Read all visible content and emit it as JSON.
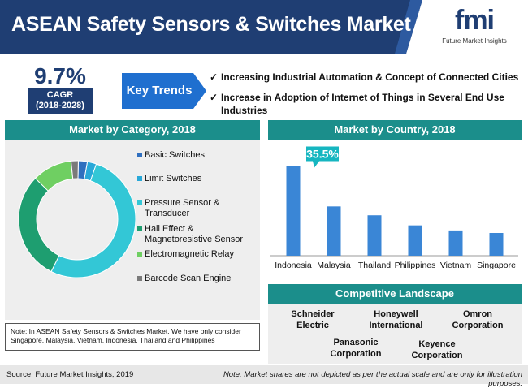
{
  "header": {
    "title": "ASEAN Safety Sensors & Switches Market"
  },
  "logo": {
    "letters": "fmi",
    "tagline": "Future Market Insights"
  },
  "cagr": {
    "value": "9.7%",
    "label": "CAGR",
    "period": "(2018-2028)"
  },
  "key_trends": {
    "label": "Key Trends",
    "items": [
      "Increasing Industrial Automation & Concept of Connected Cities",
      "Increase in Adoption of Internet of Things in Several End Use Industries"
    ]
  },
  "category": {
    "title": "Market by Category, 2018",
    "legend": [
      "Basic Switches",
      "Limit Switches",
      "Pressure Sensor & Transducer",
      "Hall Effect & Magnetoresistive Sensor",
      "Electromagnetic Relay",
      "Barcode Scan Engine"
    ]
  },
  "country": {
    "title": "Market by Country, 2018",
    "callout": "35.5%"
  },
  "competitive": {
    "title": "Competitive Landscape",
    "companies": [
      "Schneider Electric",
      "Honeywell International",
      "Omron Corporation",
      "Panasonic Corporation",
      "Keyence Corporation"
    ]
  },
  "note": "Note: In ASEAN Safety Sensors & Switches Market, We have only consider Singapore, Malaysia, Vietnam, Indonesia, Thailand and Philippines",
  "footer": {
    "source": "Source: Future Market Insights, 2019",
    "disclaimer": "Note: Market shares are not depicted as per the actual scale and are only for illustration purposes."
  },
  "colors": {
    "navy": "#1f3e73",
    "teal": "#1b8e8b",
    "bar": "#3a86d6"
  },
  "chart_data": [
    {
      "type": "pie",
      "title": "Market by Category, 2018",
      "categories": [
        "Basic Switches",
        "Limit Switches",
        "Pressure Sensor & Transducer",
        "Hall Effect & Magnetoresistive Sensor",
        "Electromagnetic Relay",
        "Barcode Scan Engine"
      ],
      "values": [
        2.5,
        2.5,
        52,
        30,
        11,
        2
      ],
      "colors": [
        "#2f6fbf",
        "#29a8d8",
        "#33c7d6",
        "#1e9e70",
        "#6fcf62",
        "#7a7a7a"
      ]
    },
    {
      "type": "bar",
      "title": "Market by Country, 2018",
      "categories": [
        "Indonesia",
        "Malaysia",
        "Thailand",
        "Philippines",
        "Vietnam",
        "Singapore"
      ],
      "values": [
        35.5,
        19.5,
        16,
        12,
        10,
        9
      ],
      "annotation": "35.5%"
    }
  ]
}
